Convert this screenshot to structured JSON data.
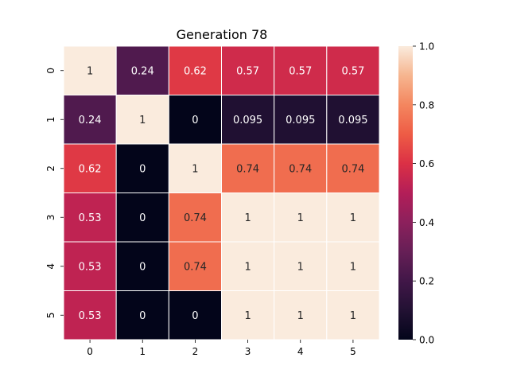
{
  "chart_data": {
    "type": "heatmap",
    "title": "Generation 78",
    "xlabel": "",
    "ylabel": "",
    "x_categories": [
      "0",
      "1",
      "2",
      "3",
      "4",
      "5"
    ],
    "y_categories": [
      "0",
      "1",
      "2",
      "3",
      "4",
      "5"
    ],
    "values": [
      [
        1,
        0.24,
        0.62,
        0.57,
        0.57,
        0.57
      ],
      [
        0.24,
        1,
        0,
        0.095,
        0.095,
        0.095
      ],
      [
        0.62,
        0,
        1,
        0.74,
        0.74,
        0.74
      ],
      [
        0.53,
        0,
        0.74,
        1,
        1,
        1
      ],
      [
        0.53,
        0,
        0.74,
        1,
        1,
        1
      ],
      [
        0.53,
        0,
        0,
        1,
        1,
        1
      ]
    ],
    "cell_labels": [
      [
        "1",
        "0.24",
        "0.62",
        "0.57",
        "0.57",
        "0.57"
      ],
      [
        "0.24",
        "1",
        "0",
        "0.095",
        "0.095",
        "0.095"
      ],
      [
        "0.62",
        "0",
        "1",
        "0.74",
        "0.74",
        "0.74"
      ],
      [
        "0.53",
        "0",
        "0.74",
        "1",
        "1",
        "1"
      ],
      [
        "0.53",
        "0",
        "0.74",
        "1",
        "1",
        "1"
      ],
      [
        "0.53",
        "0",
        "0",
        "1",
        "1",
        "1"
      ]
    ],
    "colorbar": {
      "range": [
        0,
        1
      ],
      "ticks": [
        "0.0",
        "0.2",
        "0.4",
        "0.6",
        "0.8",
        "1.0"
      ]
    },
    "colormap": "rocket",
    "grid_lines": "white"
  }
}
